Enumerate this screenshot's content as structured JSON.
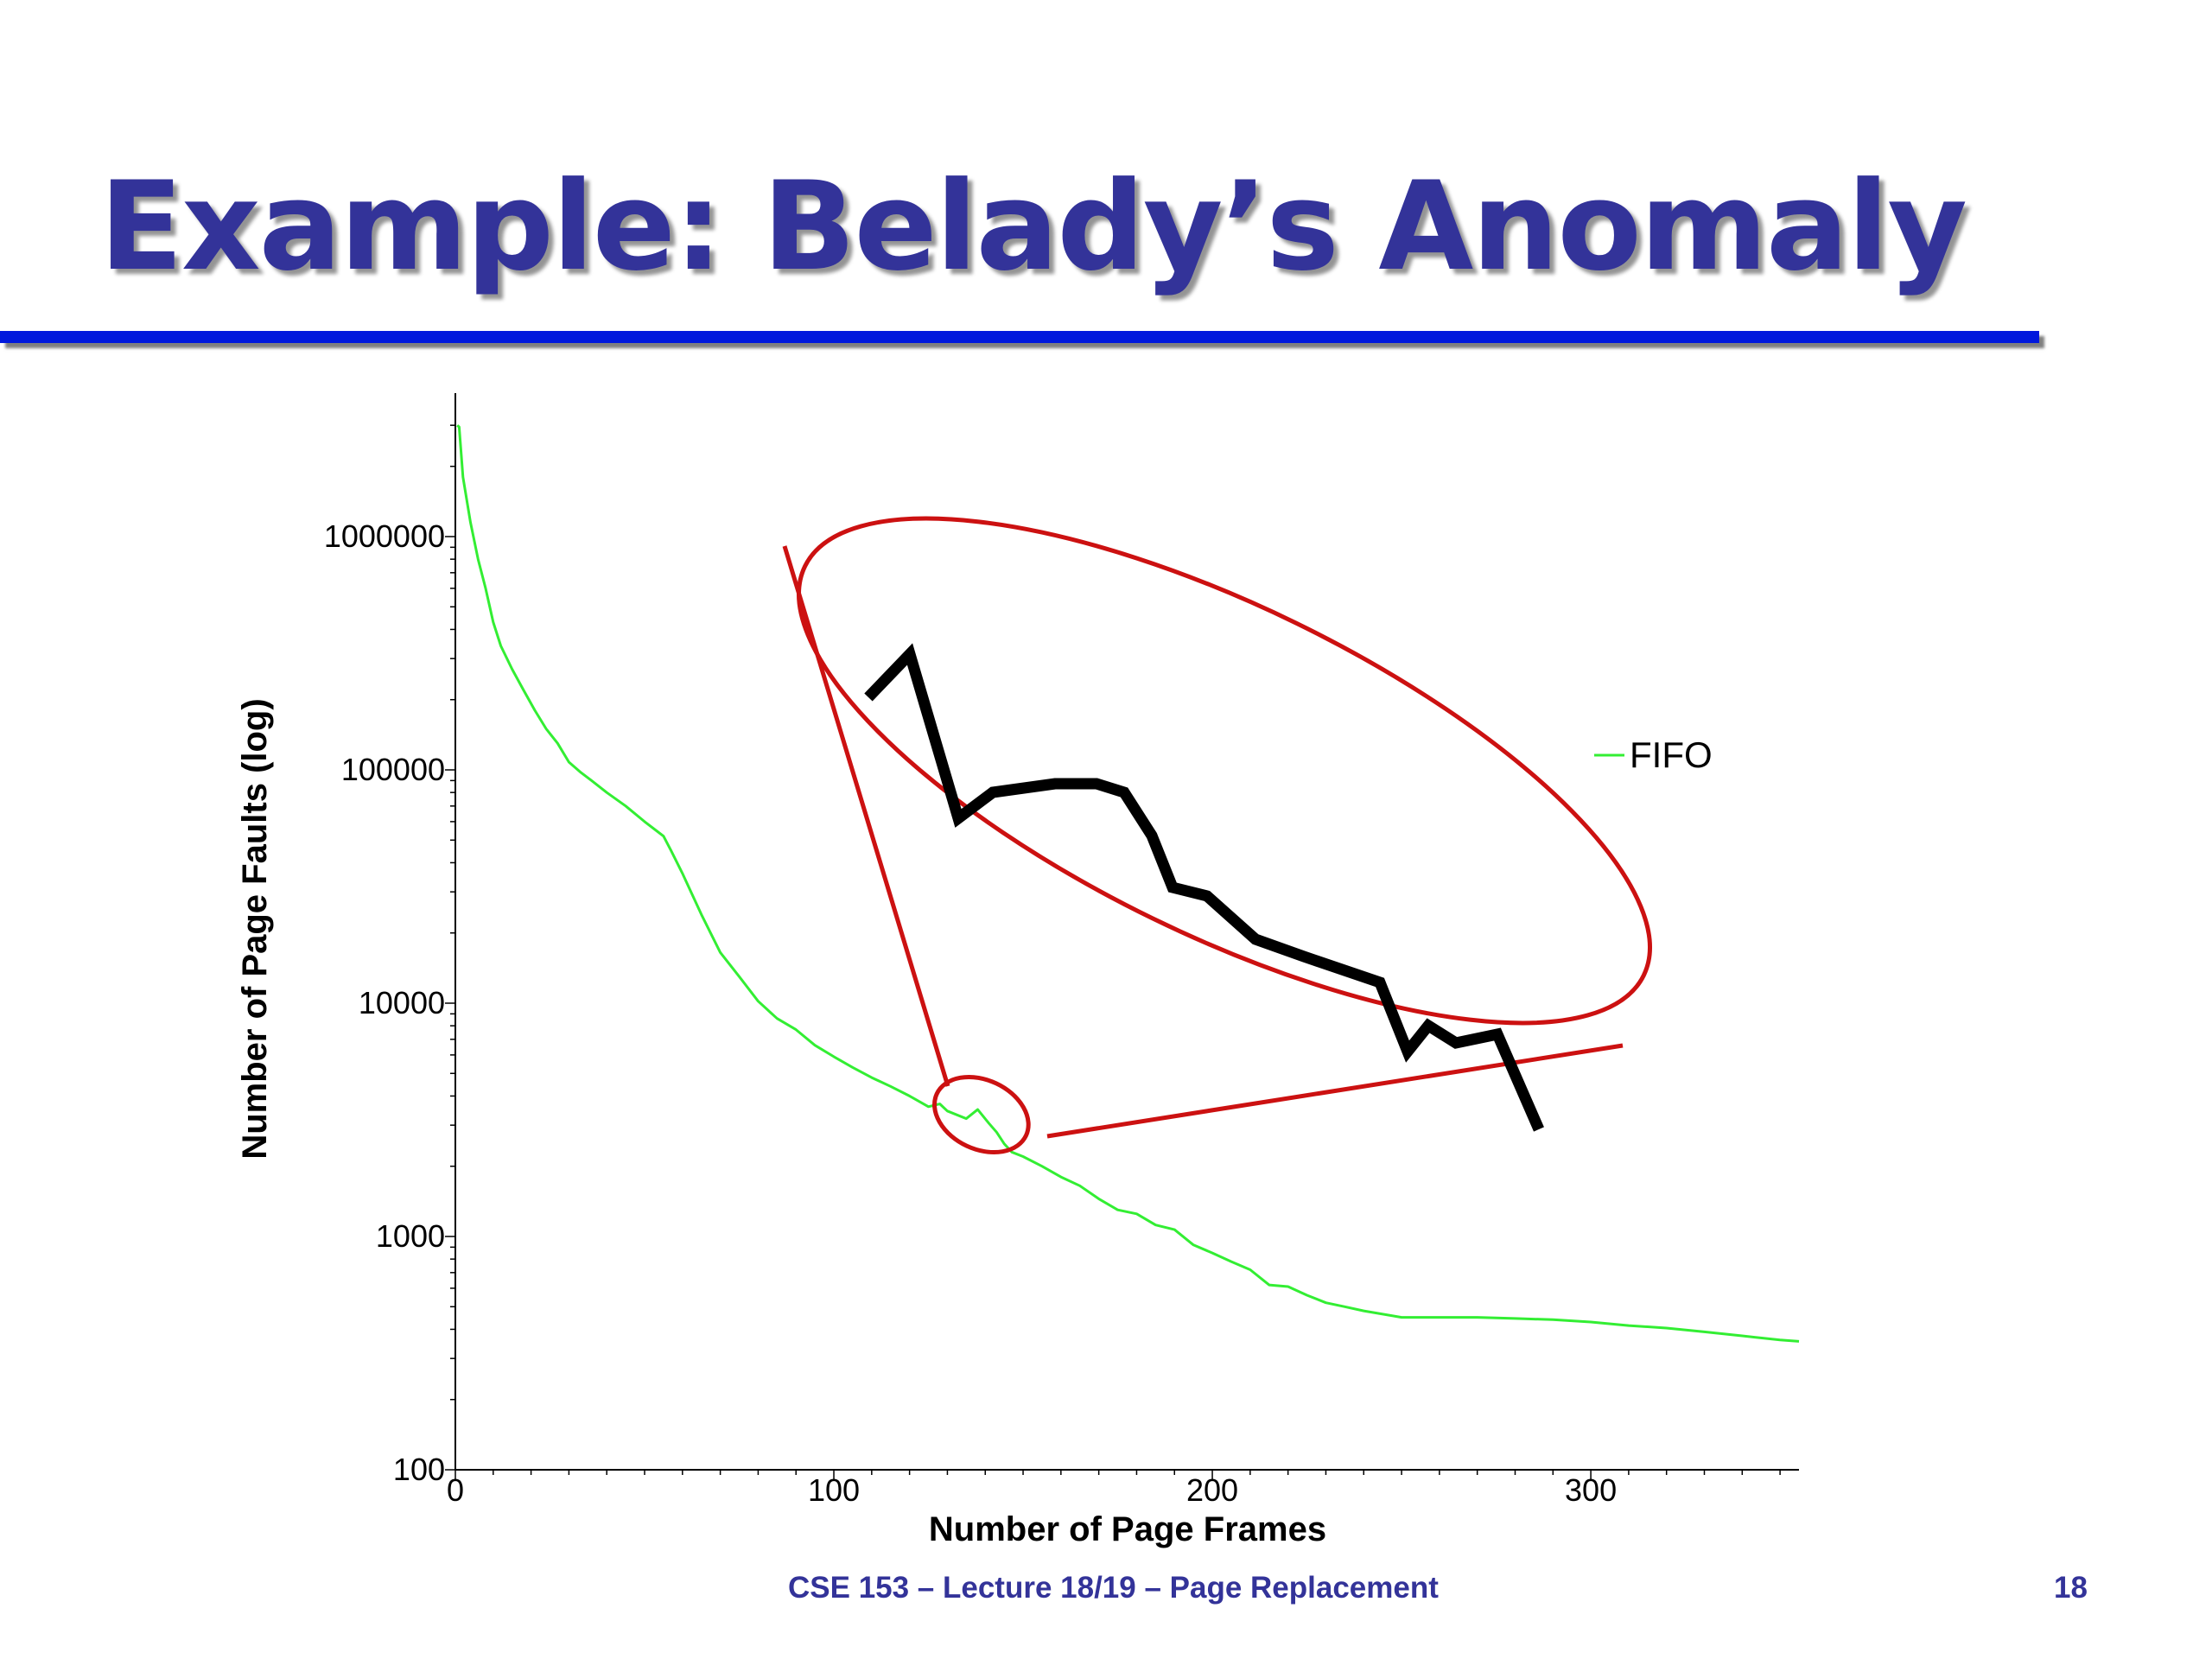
{
  "slide": {
    "title": "Example: Belady’s Anomaly",
    "footer": "CSE 153 – Lecture 18/19 – Page Replacement",
    "page_number": "18"
  },
  "colors": {
    "title": "#333399",
    "title_rule": "#0018dd",
    "series": "#33ee33",
    "callout": "#cc1111",
    "zoom_line": "#000000"
  },
  "chart_data": {
    "type": "line",
    "title": "",
    "xlabel": "Number of Page Frames",
    "ylabel": "Number of Page Faults (log)",
    "xlim": [
      0,
      355
    ],
    "ylim": [
      100,
      3500000
    ],
    "yscale": "log",
    "grid": false,
    "legend_placement": "right",
    "x_ticks": [
      {
        "value": 0,
        "label": "0"
      },
      {
        "value": 100,
        "label": "100"
      },
      {
        "value": 200,
        "label": "200"
      },
      {
        "value": 300,
        "label": "300"
      }
    ],
    "y_ticks": [
      {
        "value": 100,
        "label": "100"
      },
      {
        "value": 1000,
        "label": "1000"
      },
      {
        "value": 10000,
        "label": "10000"
      },
      {
        "value": 100000,
        "label": "100000"
      },
      {
        "value": 1000000,
        "label": "1000000"
      }
    ],
    "series": [
      {
        "name": "FIFO",
        "x": [
          0.5,
          1,
          2,
          4,
          6,
          8,
          10,
          12,
          15,
          18,
          21,
          24,
          27,
          30,
          33,
          36,
          40,
          45,
          50,
          55,
          57,
          60,
          65,
          70,
          75,
          80,
          85,
          90,
          95,
          100,
          105,
          110,
          115,
          120,
          125,
          128,
          130,
          135,
          138,
          141,
          143,
          145,
          147,
          150,
          155,
          160,
          165,
          170,
          175,
          180,
          185,
          190,
          195,
          200,
          205,
          210,
          215,
          220,
          225,
          230,
          235,
          240,
          250,
          260,
          270,
          280,
          290,
          300,
          310,
          320,
          330,
          340,
          350,
          355
        ],
        "y": [
          3000000,
          2950000,
          1800000,
          1150000,
          800000,
          600000,
          430000,
          340000,
          270000,
          220000,
          180000,
          150000,
          130000,
          108000,
          98000,
          90000,
          80000,
          70000,
          60000,
          52000,
          45000,
          36000,
          24000,
          16500,
          13000,
          10200,
          8600,
          7700,
          6600,
          5900,
          5300,
          4800,
          4400,
          4000,
          3600,
          3700,
          3450,
          3200,
          3500,
          3050,
          2800,
          2500,
          2300,
          2200,
          2000,
          1800,
          1650,
          1450,
          1300,
          1250,
          1120,
          1070,
          920,
          850,
          780,
          720,
          620,
          610,
          560,
          520,
          500,
          480,
          450,
          450,
          450,
          445,
          440,
          430,
          415,
          405,
          390,
          375,
          360,
          355
        ]
      }
    ],
    "annotations": [
      {
        "type": "zoom-callout",
        "description": "magnified view of the FIFO curve near 130–150 frames",
        "x_range": [
          128,
          150
        ],
        "zoom_shape": [
          0.0,
          0.3,
          0.06,
          0.25,
          0.13,
          0.44,
          0.18,
          0.41,
          0.27,
          0.4,
          0.33,
          0.4,
          0.37,
          0.41,
          0.41,
          0.46,
          0.44,
          0.52,
          0.49,
          0.53,
          0.56,
          0.58,
          0.63,
          0.6,
          0.74,
          0.63,
          0.78,
          0.71,
          0.81,
          0.68,
          0.85,
          0.7,
          0.91,
          0.69,
          0.97,
          0.8
        ]
      }
    ]
  }
}
